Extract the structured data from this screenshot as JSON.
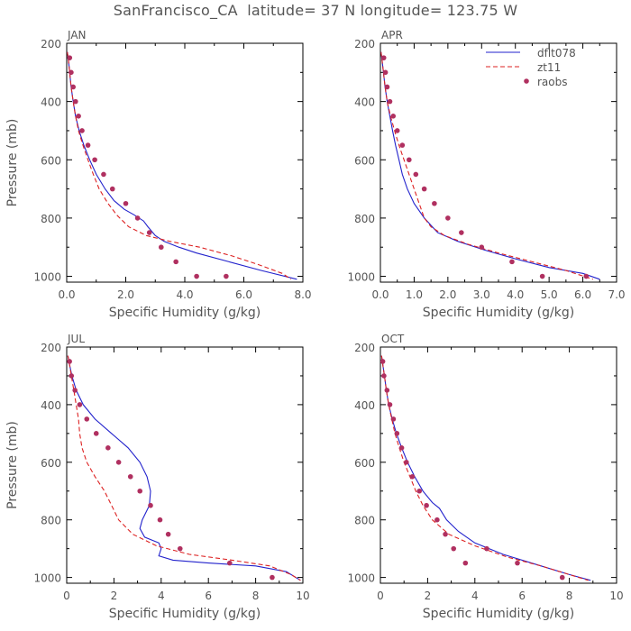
{
  "title": "SanFrancisco_CA  latitude= 37 N longitude= 123.75 W",
  "colors": {
    "dflt078": "#2222cc",
    "zt11": "#dd2222",
    "raobs": "#b03060",
    "axis": "#000000",
    "text": "#555555"
  },
  "chart_data": [
    {
      "type": "line",
      "panel_label": "JAN",
      "xlabel": "Specific Humidity (g/kg)",
      "ylabel": "Pressure (mb)",
      "xlim": [
        0,
        8
      ],
      "ylim": [
        1020,
        200
      ],
      "xticks": [
        "0.0",
        "2.0",
        "4.0",
        "6.0",
        "8.0"
      ],
      "xtick_values": [
        0,
        2,
        4,
        6,
        8
      ],
      "yticks": [
        "200",
        "400",
        "600",
        "800",
        "1000"
      ],
      "ytick_values": [
        200,
        400,
        600,
        800,
        1000
      ],
      "series": [
        {
          "name": "dflt078",
          "style": "solid",
          "x": [
            0.02,
            0.06,
            0.1,
            0.15,
            0.22,
            0.3,
            0.42,
            0.58,
            0.78,
            1.0,
            1.3,
            1.6,
            1.95,
            2.3,
            2.6,
            2.75,
            3.0,
            3.3,
            3.8,
            4.4,
            5.5,
            6.6,
            7.8
          ],
          "y": [
            230,
            260,
            300,
            350,
            400,
            450,
            500,
            550,
            600,
            650,
            700,
            740,
            770,
            790,
            810,
            830,
            860,
            880,
            900,
            920,
            950,
            980,
            1010
          ]
        },
        {
          "name": "zt11",
          "style": "dashed",
          "x": [
            0.02,
            0.06,
            0.1,
            0.15,
            0.22,
            0.3,
            0.4,
            0.55,
            0.72,
            0.9,
            1.1,
            1.4,
            1.7,
            2.1,
            2.7,
            3.5,
            4.5,
            5.6,
            6.5,
            7.3,
            7.6
          ],
          "y": [
            230,
            260,
            300,
            350,
            400,
            450,
            500,
            550,
            600,
            650,
            700,
            750,
            790,
            830,
            860,
            880,
            900,
            930,
            960,
            990,
            1010
          ]
        },
        {
          "name": "raobs",
          "style": "markers",
          "x": [
            0.1,
            0.15,
            0.22,
            0.3,
            0.4,
            0.52,
            0.72,
            0.95,
            1.25,
            1.55,
            2.0,
            2.4,
            2.8,
            3.2,
            3.7,
            4.4,
            5.4
          ],
          "y": [
            250,
            300,
            350,
            400,
            450,
            500,
            550,
            600,
            650,
            700,
            750,
            800,
            850,
            900,
            950,
            1000,
            1000
          ]
        }
      ]
    },
    {
      "type": "line",
      "panel_label": "APR",
      "xlabel": "Specific Humidity (g/kg)",
      "ylabel": "",
      "xlim": [
        0,
        7
      ],
      "ylim": [
        1020,
        200
      ],
      "xticks": [
        "0.0",
        "1.0",
        "2.0",
        "3.0",
        "4.0",
        "5.0",
        "6.0",
        "7.0"
      ],
      "xtick_values": [
        0,
        1,
        2,
        3,
        4,
        5,
        6,
        7
      ],
      "yticks": [
        "200",
        "400",
        "600",
        "800",
        "1000"
      ],
      "ytick_values": [
        200,
        400,
        600,
        800,
        1000
      ],
      "legend": {
        "position": "top-right",
        "entries": [
          "dflt078",
          "zt11",
          "raobs"
        ]
      },
      "series": [
        {
          "name": "dflt078",
          "style": "solid",
          "x": [
            0.02,
            0.05,
            0.09,
            0.14,
            0.2,
            0.28,
            0.36,
            0.45,
            0.55,
            0.65,
            0.8,
            1.0,
            1.3,
            1.7,
            2.3,
            3.1,
            4.0,
            5.0,
            6.0,
            6.5
          ],
          "y": [
            230,
            260,
            300,
            350,
            400,
            450,
            500,
            550,
            600,
            650,
            700,
            750,
            800,
            850,
            880,
            910,
            940,
            970,
            990,
            1010
          ]
        },
        {
          "name": "zt11",
          "style": "dashed",
          "x": [
            0.02,
            0.05,
            0.09,
            0.14,
            0.2,
            0.3,
            0.42,
            0.55,
            0.7,
            0.85,
            1.0,
            1.15,
            1.3,
            1.5,
            1.9,
            2.6,
            3.5,
            4.5,
            5.5,
            6.3
          ],
          "y": [
            230,
            260,
            300,
            350,
            400,
            450,
            500,
            550,
            600,
            650,
            700,
            750,
            800,
            830,
            860,
            890,
            920,
            950,
            980,
            1010
          ]
        },
        {
          "name": "raobs",
          "style": "markers",
          "x": [
            0.1,
            0.15,
            0.2,
            0.28,
            0.38,
            0.5,
            0.65,
            0.85,
            1.05,
            1.3,
            1.6,
            2.0,
            2.4,
            3.0,
            3.9,
            4.8,
            6.1
          ],
          "y": [
            250,
            300,
            350,
            400,
            450,
            500,
            550,
            600,
            650,
            700,
            750,
            800,
            850,
            900,
            950,
            1000,
            1000
          ]
        }
      ]
    },
    {
      "type": "line",
      "panel_label": "JUL",
      "xlabel": "Specific Humidity (g/kg)",
      "ylabel": "Pressure (mb)",
      "xlim": [
        0,
        10
      ],
      "ylim": [
        1020,
        200
      ],
      "xticks": [
        "0",
        "2",
        "4",
        "6",
        "8",
        "10"
      ],
      "xtick_values": [
        0,
        2,
        4,
        6,
        8,
        10
      ],
      "yticks": [
        "200",
        "400",
        "600",
        "800",
        "1000"
      ],
      "ytick_values": [
        200,
        400,
        600,
        800,
        1000
      ],
      "series": [
        {
          "name": "dflt078",
          "style": "solid",
          "x": [
            0.05,
            0.12,
            0.22,
            0.4,
            0.7,
            1.2,
            1.9,
            2.6,
            3.1,
            3.4,
            3.55,
            3.5,
            3.2,
            3.1,
            3.3,
            3.9,
            4.0,
            3.9,
            4.5,
            6.0,
            8.0,
            9.3,
            9.9
          ],
          "y": [
            230,
            260,
            300,
            350,
            400,
            450,
            500,
            550,
            600,
            650,
            700,
            750,
            800,
            830,
            860,
            880,
            900,
            925,
            940,
            950,
            960,
            980,
            1010
          ]
        },
        {
          "name": "zt11",
          "style": "dashed",
          "x": [
            0.05,
            0.12,
            0.2,
            0.3,
            0.4,
            0.5,
            0.55,
            0.65,
            0.85,
            1.2,
            1.6,
            1.9,
            2.2,
            2.8,
            3.8,
            5.2,
            7.0,
            8.6,
            9.5,
            9.9
          ],
          "y": [
            230,
            260,
            300,
            350,
            400,
            450,
            500,
            550,
            600,
            650,
            700,
            750,
            800,
            850,
            890,
            920,
            940,
            960,
            990,
            1010
          ]
        },
        {
          "name": "raobs",
          "style": "markers",
          "x": [
            0.12,
            0.2,
            0.35,
            0.55,
            0.85,
            1.25,
            1.75,
            2.2,
            2.7,
            3.1,
            3.55,
            3.95,
            4.3,
            4.8,
            6.9,
            8.7
          ],
          "y": [
            250,
            300,
            350,
            400,
            450,
            500,
            550,
            600,
            650,
            700,
            750,
            800,
            850,
            900,
            950,
            1000
          ]
        }
      ]
    },
    {
      "type": "line",
      "panel_label": "OCT",
      "xlabel": "Specific Humidity (g/kg)",
      "ylabel": "",
      "xlim": [
        0,
        10
      ],
      "ylim": [
        1020,
        200
      ],
      "xticks": [
        "0",
        "2",
        "4",
        "6",
        "8",
        "10"
      ],
      "xtick_values": [
        0,
        2,
        4,
        6,
        8,
        10
      ],
      "yticks": [
        "200",
        "400",
        "600",
        "800",
        "1000"
      ],
      "ytick_values": [
        200,
        400,
        600,
        800,
        1000
      ],
      "series": [
        {
          "name": "dflt078",
          "style": "solid",
          "x": [
            0.05,
            0.1,
            0.17,
            0.25,
            0.35,
            0.5,
            0.68,
            0.9,
            1.15,
            1.45,
            1.8,
            2.2,
            2.5,
            2.8,
            3.3,
            4.0,
            5.2,
            6.8,
            8.0,
            8.9
          ],
          "y": [
            230,
            260,
            300,
            350,
            400,
            450,
            500,
            550,
            600,
            650,
            700,
            740,
            760,
            800,
            840,
            880,
            920,
            960,
            990,
            1010
          ]
        },
        {
          "name": "zt11",
          "style": "dashed",
          "x": [
            0.05,
            0.1,
            0.17,
            0.25,
            0.35,
            0.48,
            0.62,
            0.8,
            1.0,
            1.25,
            1.5,
            1.8,
            2.2,
            2.9,
            4.0,
            5.4,
            6.8,
            8.0,
            8.8
          ],
          "y": [
            230,
            260,
            300,
            350,
            400,
            450,
            500,
            550,
            600,
            650,
            700,
            750,
            800,
            850,
            890,
            930,
            960,
            990,
            1010
          ]
        },
        {
          "name": "raobs",
          "style": "markers",
          "x": [
            0.1,
            0.15,
            0.28,
            0.4,
            0.55,
            0.7,
            0.9,
            1.1,
            1.35,
            1.65,
            1.95,
            2.4,
            2.75,
            3.1,
            3.6,
            4.5,
            5.8,
            7.7
          ],
          "y": [
            250,
            300,
            350,
            400,
            450,
            500,
            550,
            600,
            650,
            700,
            750,
            800,
            850,
            900,
            950,
            900,
            950,
            1000
          ]
        }
      ]
    }
  ]
}
